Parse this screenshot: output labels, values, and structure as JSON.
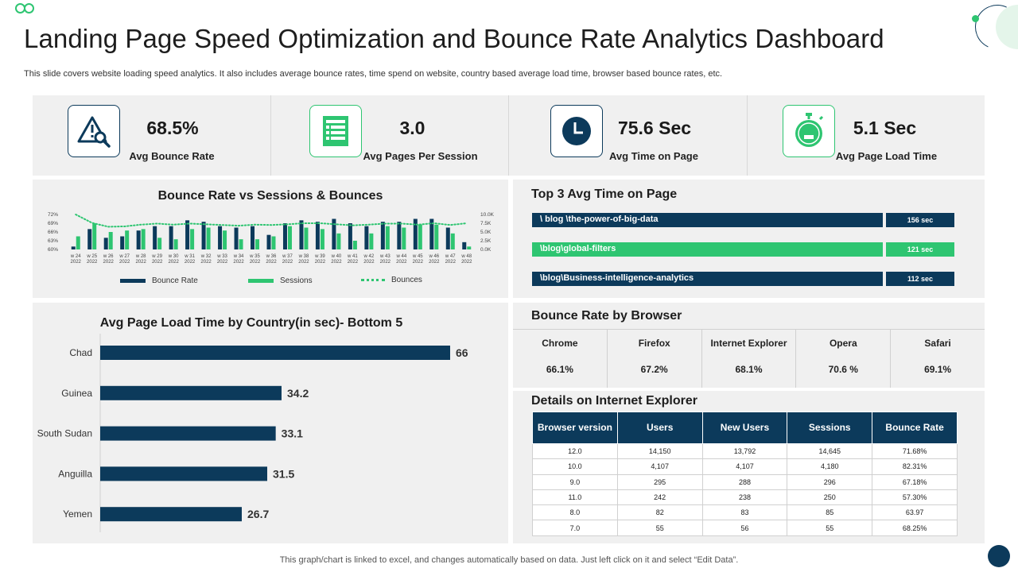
{
  "header": {
    "title": "Landing Page Speed Optimization and Bounce Rate Analytics Dashboard",
    "subtitle": "This slide covers website loading speed analytics. It also includes average bounce rates, time spend on website, country based average load time, browser based bounce rates, etc."
  },
  "kpis": [
    {
      "value": "68.5%",
      "label": "Avg Bounce Rate",
      "icon": "warning-search-icon"
    },
    {
      "value": "3.0",
      "label": "Avg Pages Per Session",
      "icon": "document-list-icon"
    },
    {
      "value": "75.6 Sec",
      "label": "Avg Time on Page",
      "icon": "clock-icon"
    },
    {
      "value": "5.1 Sec",
      "label": "Avg Page Load Time",
      "icon": "stopwatch-icon"
    }
  ],
  "bounce_chart": {
    "title": "Bounce Rate vs Sessions  & Bounces",
    "legend": {
      "bounce_rate": "Bounce Rate",
      "sessions": "Sessions",
      "bounces": "Bounces"
    }
  },
  "country_chart": {
    "title": "Avg Page Load Time by Country(in sec)- Bottom 5"
  },
  "top_pages": {
    "title": "Top 3 Avg Time on Page",
    "items": [
      {
        "page": "\\ blog \\the-power-of-big-data",
        "time": "156 sec",
        "color": "#0c3a5b"
      },
      {
        "page": "\\blog\\global-filters",
        "time": "121 sec",
        "color": "#2ec571"
      },
      {
        "page": "\\blog\\Business-intelligence-analytics",
        "time": "112 sec",
        "color": "#0c3a5b"
      }
    ]
  },
  "browsers": {
    "title": "Bounce Rate by Browser",
    "items": [
      {
        "name": "Chrome",
        "value": "66.1%"
      },
      {
        "name": "Firefox",
        "value": "67.2%"
      },
      {
        "name": "Internet Explorer",
        "value": "68.1%"
      },
      {
        "name": "Opera",
        "value": "70.6 %"
      },
      {
        "name": "Safari",
        "value": "69.1%"
      }
    ]
  },
  "ie_details": {
    "title": "Details on Internet Explorer",
    "headers": [
      "Browser version",
      "Users",
      "New Users",
      "Sessions",
      "Bounce Rate"
    ],
    "rows": [
      [
        "12.0",
        "14,150",
        "13,792",
        "14,645",
        "71.68%"
      ],
      [
        "10.0",
        "4,107",
        "4,107",
        "4,180",
        "82.31%"
      ],
      [
        "9.0",
        "295",
        "288",
        "296",
        "67.18%"
      ],
      [
        "11.0",
        "242",
        "238",
        "250",
        "57.30%"
      ],
      [
        "8.0",
        "82",
        "83",
        "85",
        "63.97"
      ],
      [
        "7.0",
        "55",
        "56",
        "55",
        "68.25%"
      ]
    ]
  },
  "footer": {
    "note": "This graph/chart is linked to excel,  and changes automatically based on data. Just left click on it and select “Edit Data”."
  },
  "colors": {
    "navy": "#0c3a5b",
    "green": "#2ec571",
    "panel": "#f0f0f0"
  },
  "chart_data": [
    {
      "type": "bar",
      "title": "Bounce Rate vs Sessions  & Bounces",
      "categories": [
        "w 24\n2022",
        "w 25\n2022",
        "w 26\n2022",
        "w 27\n2022",
        "w 28\n2022",
        "w 29\n2022",
        "w 30\n2022",
        "w 31\n2022",
        "w 32\n2022",
        "w 33\n2022",
        "w 34\n2022",
        "w 35\n2022",
        "w 36\n2022",
        "w 37\n2022",
        "w 38\n2022",
        "w 39\n2022",
        "w 40\n2022",
        "w 41\n2022",
        "w 42\n2022",
        "w 43\n2022",
        "w 44\n2022",
        "w 45\n2022",
        "w 46\n2022",
        "w 47\n2022",
        "w 48\n2022"
      ],
      "y_left_ticks": [
        "72%",
        "69%",
        "66%",
        "63%",
        "60%"
      ],
      "y_right_ticks": [
        "10.0K",
        "7.5K",
        "5.0K",
        "2.5K",
        "0.0K"
      ],
      "ylim_left": [
        60,
        72
      ],
      "ylim_right": [
        0,
        10000
      ],
      "series": [
        {
          "name": "Bounce Rate",
          "axis": "left",
          "color": "#0c3a5b",
          "values": [
            61,
            67,
            64,
            64.5,
            66.5,
            68,
            68,
            70,
            69.5,
            68,
            67.5,
            68,
            65,
            69,
            70,
            69.5,
            70.5,
            69,
            68,
            69.5,
            69.5,
            70.5,
            70.5,
            67.5,
            62.5
          ]
        },
        {
          "name": "Sessions",
          "axis": "left",
          "color": "#2ec571",
          "values": [
            64.5,
            69,
            66,
            66.5,
            67,
            64,
            63.5,
            67,
            67.5,
            66.5,
            63.5,
            63.5,
            64.5,
            68,
            67.5,
            67,
            65.5,
            63,
            65.5,
            68,
            67.5,
            68.5,
            68.5,
            65.5,
            61
          ]
        },
        {
          "name": "Bounces",
          "axis": "right",
          "color": "#2ec571",
          "values": [
            10000,
            7600,
            6500,
            6600,
            7100,
            7400,
            7100,
            7400,
            7200,
            7000,
            6800,
            7100,
            7000,
            7200,
            7500,
            7500,
            7200,
            6900,
            7100,
            7400,
            7400,
            7100,
            7500,
            7000,
            7500
          ]
        }
      ],
      "legend_position": "bottom"
    },
    {
      "type": "bar",
      "orientation": "horizontal",
      "title": "Avg Page Load Time by Country(in sec)- Bottom 5",
      "categories": [
        "Chad",
        "Guinea",
        "South Sudan",
        "Anguilla",
        "Yemen"
      ],
      "values": [
        66,
        34.2,
        33.1,
        31.5,
        26.7
      ],
      "value_labels": [
        "66",
        "34.2",
        "33.1",
        "31.5",
        "26.7"
      ],
      "color": "#0c3a5b",
      "xlim": [
        0,
        66
      ]
    }
  ]
}
